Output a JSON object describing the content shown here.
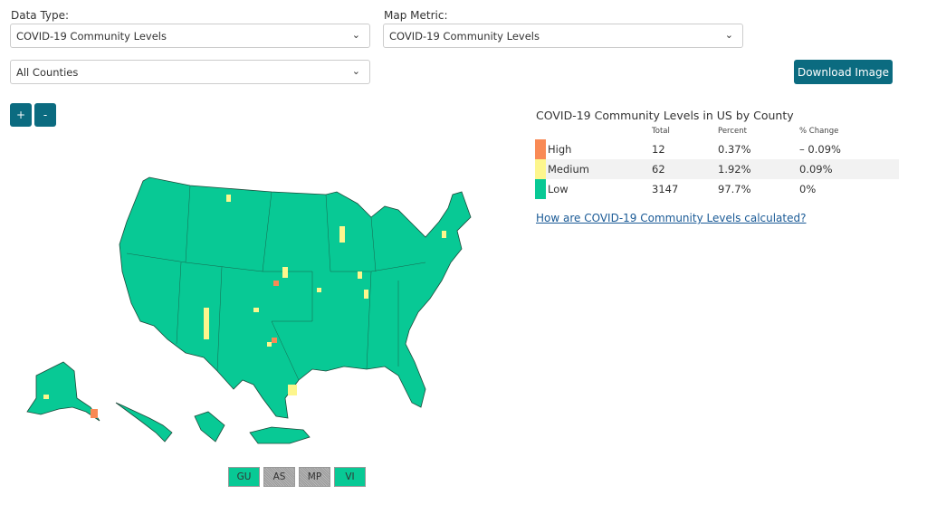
{
  "filters": {
    "data_type_label": "Data Type:",
    "data_type_value": "COVID-19 Community Levels",
    "map_metric_label": "Map Metric:",
    "map_metric_value": "COVID-19 Community Levels",
    "region_value": "All Counties",
    "download_label": "Download Image"
  },
  "zoom": {
    "in_label": "+",
    "out_label": "-"
  },
  "legend": {
    "title": "COVID-19 Community Levels in US by County",
    "headers": [
      "",
      "Total",
      "Percent",
      "% Change"
    ],
    "rows": [
      {
        "level": "High",
        "total": "12",
        "percent": "0.37%",
        "change": "– 0.09%",
        "color": "#f98a55"
      },
      {
        "level": "Medium",
        "total": "62",
        "percent": "1.92%",
        "change": "0.09%",
        "color": "#fdf68d"
      },
      {
        "level": "Low",
        "total": "3147",
        "percent": "97.7%",
        "change": "0%",
        "color": "#08c995"
      }
    ],
    "link": "How are COVID-19 Community Levels calculated?"
  },
  "territories": [
    {
      "label": "GU",
      "status": "Low"
    },
    {
      "label": "AS",
      "status": "No data"
    },
    {
      "label": "MP",
      "status": "No data"
    },
    {
      "label": "VI",
      "status": "Low"
    }
  ],
  "colors": {
    "accent": "#0b6b80",
    "low": "#08c995",
    "medium": "#fdf68d",
    "high": "#f98a55"
  }
}
